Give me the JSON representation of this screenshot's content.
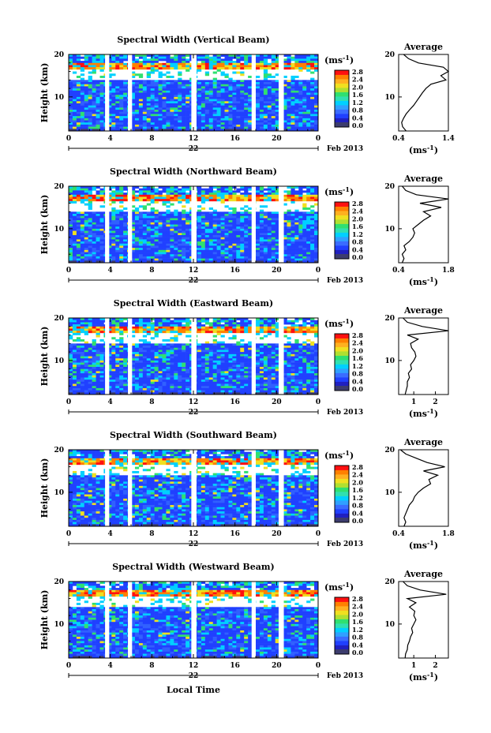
{
  "figure": {
    "xlabel": "Local Time",
    "ylabel": "Height (km)",
    "date_label": "Feb 2013",
    "colorbar_unit": "(ms",
    "unit_exp": "-1",
    "unit_close": ")",
    "colorbar_ticks": [
      "0.0",
      "0.4",
      "0.8",
      "1.2",
      "1.6",
      "2.0",
      "2.4",
      "2.8"
    ],
    "average_title": "Average",
    "colors": {
      "dark": "#3c3c6e",
      "blue": "#2040ff",
      "cyan": "#00d0ff",
      "green": "#30e070",
      "yellow": "#f0e020",
      "orange": "#ff8000",
      "red": "#ff1010"
    }
  },
  "chart_data": [
    {
      "type": "heatmap",
      "title": "Spectral Width (Vertical Beam)",
      "x_ticks": [
        "0",
        "4",
        "8",
        "12",
        "16",
        "20",
        "0"
      ],
      "xlim": [
        0,
        24
      ],
      "day_label": "22",
      "y_ticks": [
        "20",
        "10"
      ],
      "ylim": [
        2,
        20
      ],
      "data_gaps_hours": [
        [
          3.5,
          3.9
        ],
        [
          5.7,
          6.1
        ],
        [
          11.8,
          12.3
        ],
        [
          17.6,
          18.0
        ],
        [
          20.2,
          20.7
        ]
      ],
      "average": {
        "x_ticks": [
          "0.4",
          "1.4"
        ],
        "xlim": [
          0.4,
          1.4
        ],
        "height": [
          2,
          3,
          4,
          5,
          6,
          7,
          8,
          9,
          10,
          11,
          12,
          13,
          14,
          15,
          16,
          17,
          18,
          19,
          20
        ],
        "value": [
          0.55,
          0.48,
          0.46,
          0.5,
          0.55,
          0.62,
          0.7,
          0.76,
          0.82,
          0.88,
          0.95,
          1.05,
          1.35,
          1.25,
          1.4,
          1.3,
          0.8,
          0.6,
          0.5
        ]
      }
    },
    {
      "type": "heatmap",
      "title": "Spectral Width (Northward Beam)",
      "x_ticks": [
        "0",
        "4",
        "8",
        "12",
        "16",
        "20",
        "0"
      ],
      "xlim": [
        0,
        24
      ],
      "day_label": "22",
      "y_ticks": [
        "20",
        "10"
      ],
      "ylim": [
        2,
        20
      ],
      "data_gaps_hours": [
        [
          3.5,
          3.9
        ],
        [
          5.7,
          6.1
        ],
        [
          11.8,
          12.3
        ],
        [
          17.6,
          18.0
        ],
        [
          20.2,
          20.7
        ]
      ],
      "average": {
        "x_ticks": [
          "0.4",
          "1.8"
        ],
        "xlim": [
          0.4,
          1.8
        ],
        "height": [
          2,
          3,
          4,
          5,
          6,
          7,
          8,
          9,
          10,
          11,
          12,
          13,
          14,
          15,
          16,
          17,
          18,
          19,
          20
        ],
        "value": [
          0.5,
          0.55,
          0.5,
          0.6,
          0.55,
          0.7,
          0.8,
          0.85,
          0.8,
          0.95,
          1.1,
          1.3,
          1.1,
          1.6,
          1.0,
          1.8,
          0.9,
          0.6,
          0.5
        ]
      }
    },
    {
      "type": "heatmap",
      "title": "Spectral Width (Eastward Beam)",
      "x_ticks": [
        "0",
        "4",
        "8",
        "12",
        "16",
        "20",
        "0"
      ],
      "xlim": [
        0,
        24
      ],
      "day_label": "22",
      "y_ticks": [
        "20",
        "10"
      ],
      "ylim": [
        2,
        20
      ],
      "data_gaps_hours": [
        [
          3.5,
          3.9
        ],
        [
          5.7,
          6.1
        ],
        [
          11.8,
          12.3
        ],
        [
          17.6,
          18.0
        ],
        [
          20.2,
          20.7
        ]
      ],
      "average": {
        "x_ticks": [
          "1",
          "2"
        ],
        "xlim": [
          0.3,
          2.6
        ],
        "height": [
          2,
          3,
          4,
          5,
          6,
          7,
          8,
          9,
          10,
          11,
          12,
          13,
          14,
          15,
          16,
          17,
          18,
          19,
          20
        ],
        "value": [
          0.6,
          0.65,
          0.7,
          0.7,
          0.8,
          0.75,
          0.9,
          0.85,
          1.0,
          1.1,
          1.05,
          0.9,
          0.85,
          1.2,
          0.7,
          2.6,
          1.4,
          0.7,
          0.5
        ]
      }
    },
    {
      "type": "heatmap",
      "title": "Spectral Width (Southward Beam)",
      "x_ticks": [
        "0",
        "4",
        "8",
        "12",
        "16",
        "20",
        "0"
      ],
      "xlim": [
        0,
        24
      ],
      "day_label": "22",
      "y_ticks": [
        "20",
        "10"
      ],
      "ylim": [
        2,
        20
      ],
      "data_gaps_hours": [
        [
          3.5,
          3.9
        ],
        [
          5.7,
          6.1
        ],
        [
          11.8,
          12.3
        ],
        [
          17.6,
          18.0
        ],
        [
          20.2,
          20.7
        ]
      ],
      "average": {
        "x_ticks": [
          "0.4",
          "1.8"
        ],
        "xlim": [
          0.4,
          1.8
        ],
        "height": [
          2,
          3,
          4,
          5,
          6,
          7,
          8,
          9,
          10,
          11,
          12,
          13,
          14,
          15,
          16,
          17,
          18,
          19,
          20
        ],
        "value": [
          0.55,
          0.6,
          0.55,
          0.6,
          0.65,
          0.7,
          0.8,
          0.85,
          0.95,
          1.1,
          1.3,
          1.25,
          1.5,
          1.1,
          1.7,
          1.2,
          0.9,
          0.6,
          0.45
        ]
      }
    },
    {
      "type": "heatmap",
      "title": "Spectral Width (Westward Beam)",
      "x_ticks": [
        "0",
        "4",
        "8",
        "12",
        "16",
        "20",
        "0"
      ],
      "xlim": [
        0,
        24
      ],
      "day_label": "22",
      "y_ticks": [
        "20",
        "10"
      ],
      "ylim": [
        2,
        20
      ],
      "data_gaps_hours": [
        [
          3.5,
          3.9
        ],
        [
          5.7,
          6.1
        ],
        [
          11.8,
          12.3
        ],
        [
          17.6,
          18.0
        ],
        [
          20.2,
          20.7
        ]
      ],
      "average": {
        "x_ticks": [
          "1",
          "2"
        ],
        "xlim": [
          0.3,
          2.6
        ],
        "height": [
          2,
          3,
          4,
          5,
          6,
          7,
          8,
          9,
          10,
          11,
          12,
          13,
          14,
          15,
          16,
          17,
          18,
          19,
          20
        ],
        "value": [
          0.6,
          0.62,
          0.7,
          0.72,
          0.8,
          0.85,
          0.95,
          0.9,
          1.0,
          1.1,
          1.0,
          1.05,
          0.8,
          1.1,
          0.7,
          2.5,
          1.3,
          0.7,
          0.5
        ]
      }
    }
  ]
}
